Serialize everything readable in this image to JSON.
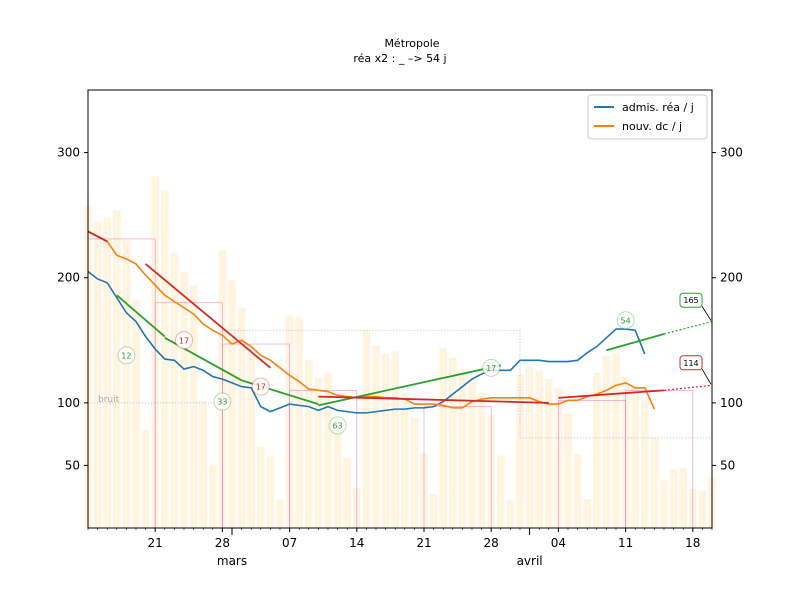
{
  "chart_data": {
    "type": "line",
    "title": "Métropole",
    "subtitle": "réa x2 : _ –> 54 j",
    "xlabel": "",
    "ylabel": "",
    "ylim": [
      0,
      350
    ],
    "yticks": [
      50,
      100,
      200,
      300
    ],
    "x_start": "2021-02-14",
    "x_end": "2021-04-20",
    "x_ticks": [
      {
        "date": "2021-02-21",
        "label": "21"
      },
      {
        "date": "2021-02-28",
        "label": "28"
      },
      {
        "date": "2021-03-07",
        "label": "07"
      },
      {
        "date": "2021-03-14",
        "label": "14"
      },
      {
        "date": "2021-03-21",
        "label": "21"
      },
      {
        "date": "2021-03-28",
        "label": "28"
      },
      {
        "date": "2021-04-04",
        "label": "04"
      },
      {
        "date": "2021-04-11",
        "label": "11"
      },
      {
        "date": "2021-04-18",
        "label": "18"
      }
    ],
    "month_labels": [
      {
        "date": "2021-03-01",
        "label": "mars"
      },
      {
        "date": "2021-04-01",
        "label": "avril"
      }
    ],
    "legend": {
      "placement": "upper right"
    },
    "series": [
      {
        "name": "admis. réa / j",
        "color": "#1f77b4",
        "start": "2021-02-14",
        "values": [
          205,
          199,
          196,
          184,
          172,
          165,
          153,
          143,
          135,
          134,
          127,
          129,
          126,
          121,
          119,
          116,
          113,
          112,
          97,
          93,
          96,
          99,
          98,
          97,
          94,
          97,
          94,
          93,
          92,
          92,
          93,
          94,
          95,
          95,
          96,
          96,
          97,
          101,
          107,
          113,
          119,
          123,
          126,
          126,
          126,
          134,
          134,
          134,
          133,
          133,
          133,
          134,
          140,
          145,
          152,
          159,
          159,
          158,
          139
        ]
      },
      {
        "name": "nouv. dc / j",
        "color": "#ff7f0e",
        "start": "2021-02-14",
        "values": [
          237,
          233,
          229,
          218,
          215,
          211,
          202,
          194,
          186,
          181,
          176,
          171,
          163,
          158,
          154,
          147,
          150,
          145,
          138,
          134,
          128,
          122,
          117,
          111,
          110,
          109,
          106,
          105,
          104,
          105,
          105,
          104,
          104,
          103,
          99,
          99,
          99,
          98,
          96,
          96,
          101,
          103,
          104,
          104,
          104,
          104,
          104,
          101,
          99,
          99,
          102,
          102,
          105,
          107,
          110,
          114,
          116,
          112,
          112,
          95
        ]
      }
    ],
    "bars": {
      "color": "#fff4e0",
      "start": "2021-02-14",
      "values": [
        258,
        245,
        248,
        254,
        230,
        182,
        78,
        281,
        270,
        220,
        205,
        194,
        101,
        50,
        222,
        198,
        176,
        140,
        65,
        57,
        23,
        170,
        168,
        134,
        120,
        124,
        80,
        56,
        32,
        158,
        146,
        139,
        141,
        108,
        88,
        60,
        27,
        144,
        136,
        125,
        118,
        108,
        90,
        58,
        22,
        123,
        129,
        126,
        119,
        112,
        92,
        59,
        23,
        124,
        138,
        140,
        121,
        113,
        102,
        72,
        38,
        47,
        48,
        31,
        30,
        40
      ]
    },
    "fit_lines": [
      {
        "color": "#2ca02c",
        "start": "2021-02-17",
        "end": "2021-02-22",
        "y0": 186,
        "y1": 153
      },
      {
        "color": "#2ca02c",
        "start": "2021-02-22",
        "end": "2021-03-02",
        "y0": 152,
        "y1": 118
      },
      {
        "color": "#2ca02c",
        "start": "2021-03-02",
        "end": "2021-03-10",
        "y0": 118,
        "y1": 99
      },
      {
        "color": "#2ca02c",
        "start": "2021-03-10",
        "end": "2021-03-29",
        "y0": 98,
        "y1": 130
      },
      {
        "color": "#2ca02c",
        "start": "2021-04-09",
        "end": "2021-04-15",
        "y0": 142,
        "y1": 155
      },
      {
        "color": "#d62728",
        "start": "2021-02-14",
        "end": "2021-02-16",
        "y0": 237,
        "y1": 229
      },
      {
        "color": "#d62728",
        "start": "2021-02-20",
        "end": "2021-03-05",
        "y0": 211,
        "y1": 128
      },
      {
        "color": "#d62728",
        "start": "2021-03-10",
        "end": "2021-04-03",
        "y0": 105,
        "y1": 100
      },
      {
        "color": "#d62728",
        "start": "2021-04-04",
        "end": "2021-04-15",
        "y0": 104,
        "y1": 110
      }
    ],
    "projections": [
      {
        "color": "#2ca02c",
        "start": "2021-04-15",
        "end": "2021-04-20",
        "y0": 155,
        "y1": 165
      },
      {
        "color": "#d62728",
        "start": "2021-04-15",
        "end": "2021-04-20",
        "y0": 110,
        "y1": 114
      }
    ],
    "step_regions": [
      {
        "start": "2021-02-14",
        "end": "2021-02-21",
        "value": 231
      },
      {
        "start": "2021-02-21",
        "end": "2021-02-28",
        "value": 180
      },
      {
        "start": "2021-02-28",
        "end": "2021-03-07",
        "value": 147
      },
      {
        "start": "2021-03-07",
        "end": "2021-03-14",
        "value": 110
      },
      {
        "start": "2021-03-21",
        "end": "2021-03-28",
        "value": 97
      },
      {
        "start": "2021-04-04",
        "end": "2021-04-11",
        "value": 102
      },
      {
        "start": "2021-04-11",
        "end": "2021-04-18",
        "value": 110
      }
    ],
    "reference_line": {
      "color": "#aaaaaa",
      "points": [
        [
          "2021-02-14",
          100
        ],
        [
          "2021-02-28",
          100
        ],
        [
          "2021-02-28",
          158
        ],
        [
          "2021-03-31",
          158
        ],
        [
          "2021-03-31",
          72
        ],
        [
          "2021-04-20",
          72
        ]
      ]
    },
    "annotations": [
      {
        "text": "12",
        "date": "2021-02-18",
        "y": 138,
        "color": "#2ca02c"
      },
      {
        "text": "17",
        "date": "2021-02-24",
        "y": 150,
        "color": "#d62728"
      },
      {
        "text": "33",
        "date": "2021-02-28",
        "y": 101,
        "color": "#2ca02c"
      },
      {
        "text": "17",
        "date": "2021-03-04",
        "y": 113,
        "color": "#d62728"
      },
      {
        "text": "63",
        "date": "2021-03-12",
        "y": 82,
        "color": "#2ca02c"
      },
      {
        "text": "17",
        "date": "2021-03-28",
        "y": 128,
        "color": "#2ca02c"
      },
      {
        "text": "54",
        "date": "2021-04-11",
        "y": 166,
        "color": "#2ca02c"
      }
    ],
    "end_labels": [
      {
        "text": "165",
        "y": 165,
        "box_y": 182,
        "color": "#2ca02c"
      },
      {
        "text": "114",
        "y": 114,
        "box_y": 132,
        "color": "#d62728"
      }
    ],
    "bruit": {
      "text": "bruit",
      "y": 100
    }
  }
}
